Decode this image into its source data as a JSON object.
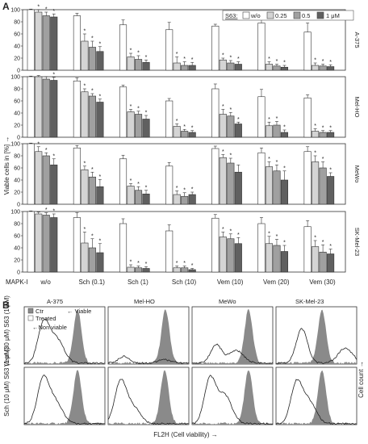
{
  "panel_labels": [
    "A",
    "B"
  ],
  "chart_data": [
    {
      "type": "bar",
      "panel": "A",
      "ylabel": "Viable cells in [%] →",
      "xlabel": "MAPK-I",
      "categories": [
        "w/o",
        "Sch (0.1)",
        "Sch (1)",
        "Sch (10)",
        "Vem (10)",
        "Vem (20)",
        "Vem (30)"
      ],
      "legend_title": "S63:",
      "legend": [
        "w/o",
        "0.25",
        "0.5",
        "1 μM"
      ],
      "legend_placement": "top-right",
      "series_colors": [
        "#ffffff",
        "#d4d4d4",
        "#a0a0a0",
        "#606060"
      ],
      "ylim": [
        0,
        100
      ],
      "yticks": [
        "0",
        "20",
        "40",
        "60",
        "80",
        "100"
      ],
      "significance_mark": "*",
      "cell_lines": [
        {
          "name": "A-375",
          "values": [
            [
              100,
              96,
              90,
              88
            ],
            [
              90,
              48,
              38,
              31
            ],
            [
              75,
              22,
              18,
              13
            ],
            [
              67,
              12,
              8,
              8
            ],
            [
              73,
              17,
              12,
              10
            ],
            [
              78,
              10,
              7,
              5
            ],
            [
              63,
              8,
              7,
              6
            ]
          ],
          "errors": [
            [
              1,
              4,
              6,
              5
            ],
            [
              4,
              12,
              10,
              8
            ],
            [
              8,
              6,
              6,
              4
            ],
            [
              12,
              10,
              6,
              5
            ],
            [
              3,
              3,
              4,
              4
            ],
            [
              7,
              4,
              3,
              3
            ],
            [
              15,
              4,
              3,
              3
            ]
          ],
          "stars": [
            [
              0,
              1,
              1,
              1
            ],
            [
              0,
              1,
              1,
              1
            ],
            [
              0,
              1,
              1,
              1
            ],
            [
              0,
              1,
              1,
              1
            ],
            [
              0,
              1,
              1,
              1
            ],
            [
              0,
              1,
              1,
              1
            ],
            [
              0,
              1,
              1,
              1
            ]
          ]
        },
        {
          "name": "Mel-HO",
          "values": [
            [
              100,
              100,
              96,
              94
            ],
            [
              93,
              75,
              68,
              58
            ],
            [
              83,
              42,
              38,
              30
            ],
            [
              60,
              18,
              10,
              8
            ],
            [
              80,
              38,
              35,
              22
            ],
            [
              67,
              19,
              20,
              8
            ],
            [
              65,
              10,
              8,
              8
            ]
          ],
          "errors": [
            [
              1,
              2,
              4,
              5
            ],
            [
              5,
              5,
              4,
              5
            ],
            [
              3,
              4,
              5,
              6
            ],
            [
              4,
              4,
              3,
              3
            ],
            [
              8,
              8,
              6,
              3
            ],
            [
              12,
              6,
              6,
              4
            ],
            [
              5,
              4,
              3,
              3
            ]
          ],
          "stars": [
            [
              0,
              0,
              0,
              1
            ],
            [
              0,
              1,
              1,
              1
            ],
            [
              0,
              1,
              1,
              1
            ],
            [
              0,
              1,
              1,
              1
            ],
            [
              0,
              1,
              1,
              1
            ],
            [
              0,
              1,
              1,
              1
            ],
            [
              0,
              1,
              1,
              1
            ]
          ]
        },
        {
          "name": "MeWo",
          "values": [
            [
              100,
              87,
              80,
              65
            ],
            [
              93,
              57,
              45,
              29
            ],
            [
              75,
              30,
              23,
              17
            ],
            [
              63,
              16,
              13,
              16
            ],
            [
              92,
              77,
              68,
              53
            ],
            [
              85,
              62,
              55,
              40
            ],
            [
              87,
              70,
              60,
              46
            ]
          ],
          "errors": [
            [
              1,
              8,
              5,
              10
            ],
            [
              4,
              6,
              8,
              12
            ],
            [
              6,
              4,
              6,
              6
            ],
            [
              6,
              6,
              6,
              4
            ],
            [
              4,
              5,
              8,
              12
            ],
            [
              8,
              8,
              10,
              15
            ],
            [
              8,
              10,
              10,
              6
            ]
          ],
          "stars": [
            [
              0,
              1,
              1,
              1
            ],
            [
              0,
              1,
              1,
              1
            ],
            [
              0,
              1,
              1,
              1
            ],
            [
              0,
              1,
              1,
              1
            ],
            [
              0,
              1,
              1,
              0
            ],
            [
              0,
              1,
              1,
              1
            ],
            [
              0,
              1,
              1,
              1
            ]
          ]
        },
        {
          "name": "SK-Mel-23",
          "values": [
            [
              100,
              96,
              94,
              90
            ],
            [
              90,
              48,
              40,
              32
            ],
            [
              80,
              8,
              7,
              6
            ],
            [
              68,
              7,
              7,
              4
            ],
            [
              89,
              58,
              55,
              47
            ],
            [
              80,
              47,
              44,
              34
            ],
            [
              75,
              42,
              33,
              30
            ]
          ],
          "errors": [
            [
              1,
              3,
              4,
              6
            ],
            [
              8,
              18,
              15,
              15
            ],
            [
              8,
              4,
              3,
              3
            ],
            [
              10,
              3,
              3,
              2
            ],
            [
              6,
              8,
              8,
              10
            ],
            [
              10,
              12,
              10,
              10
            ],
            [
              10,
              10,
              12,
              8
            ]
          ],
          "stars": [
            [
              0,
              0,
              1,
              1
            ],
            [
              0,
              1,
              1,
              1
            ],
            [
              0,
              1,
              1,
              1
            ],
            [
              0,
              1,
              1,
              1
            ],
            [
              0,
              1,
              1,
              1
            ],
            [
              0,
              1,
              1,
              1
            ],
            [
              0,
              1,
              1,
              1
            ]
          ]
        }
      ]
    },
    {
      "type": "area",
      "panel": "B",
      "xlabel": "FL2H (Cell viability) →",
      "ylabel": "Cell count →",
      "columns": [
        "A-375",
        "Mel-HO",
        "MeWo",
        "SK-Mel-23"
      ],
      "rows": [
        "Vem (30 μM) S63 (1 μM)",
        "Sch (10 μM) S63 (1 μM)"
      ],
      "legend": [
        "Ctr",
        "Treated"
      ],
      "annotations": [
        "Viable",
        "Non viable"
      ],
      "colors": {
        "ctr": "#8a8a8a",
        "treated": "#222222"
      },
      "histograms": [
        {
          "row": 0,
          "col": 0,
          "ctr_peak": 0.66,
          "treated_peaks": [
            [
              0.24,
              0.68
            ],
            [
              0.4,
              0.42
            ]
          ]
        },
        {
          "row": 0,
          "col": 1,
          "ctr_peak": 0.71,
          "treated_peaks": [
            [
              0.2,
              0.12
            ],
            [
              0.7,
              0.06
            ]
          ]
        },
        {
          "row": 0,
          "col": 2,
          "ctr_peak": 0.7,
          "treated_peaks": [
            [
              0.3,
              0.32
            ],
            [
              0.55,
              0.22
            ]
          ]
        },
        {
          "row": 0,
          "col": 3,
          "ctr_peak": 0.57,
          "treated_peaks": [
            [
              0.32,
              0.6
            ],
            [
              0.86,
              0.26
            ]
          ]
        },
        {
          "row": 1,
          "col": 0,
          "ctr_peak": 0.66,
          "treated_peaks": [
            [
              0.23,
              0.74
            ],
            [
              0.38,
              0.4
            ]
          ]
        },
        {
          "row": 1,
          "col": 1,
          "ctr_peak": 0.7,
          "treated_peaks": [
            [
              0.15,
              0.7
            ],
            [
              0.3,
              0.3
            ]
          ]
        },
        {
          "row": 1,
          "col": 2,
          "ctr_peak": 0.7,
          "treated_peaks": [
            [
              0.22,
              0.76
            ],
            [
              0.4,
              0.5
            ]
          ]
        },
        {
          "row": 1,
          "col": 3,
          "ctr_peak": 0.57,
          "treated_peaks": [
            [
              0.25,
              0.66
            ],
            [
              0.4,
              0.4
            ]
          ]
        }
      ]
    }
  ]
}
